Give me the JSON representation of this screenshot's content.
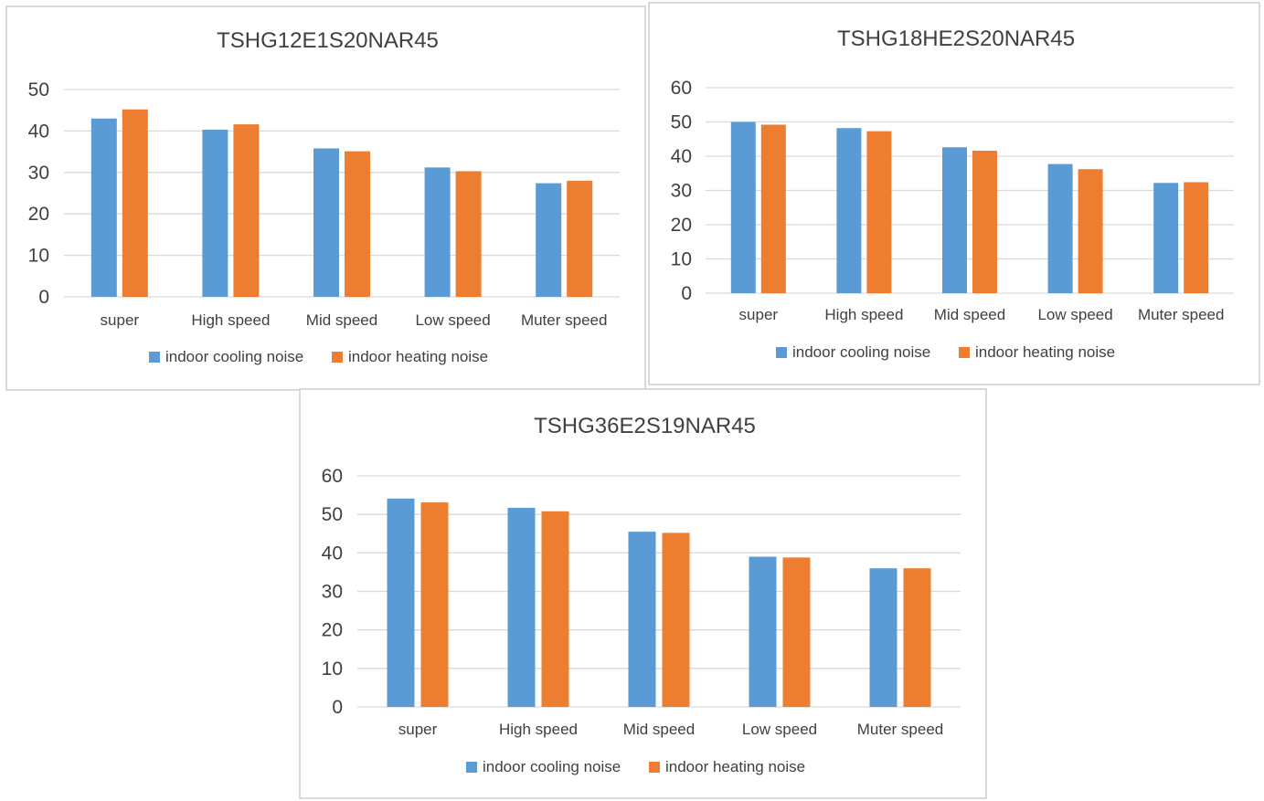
{
  "colors": {
    "cooling": "#5b9bd5",
    "heating": "#ed7d31",
    "grid": "#d9d9d9",
    "text": "#404040"
  },
  "chart_data": [
    {
      "type": "bar",
      "title": "TSHG12E1S20NAR45",
      "categories": [
        "super",
        "High speed",
        "Mid speed",
        "Low speed",
        "Muter speed"
      ],
      "series": [
        {
          "name": "indoor cooling noise",
          "values": [
            43,
            40.3,
            35.8,
            31.2,
            27.4
          ]
        },
        {
          "name": "indoor heating noise",
          "values": [
            45.2,
            41.6,
            35.1,
            30.3,
            28
          ]
        }
      ],
      "ylim": [
        0,
        50
      ],
      "yticks": [
        "0",
        "10",
        "20",
        "30",
        "40",
        "50"
      ],
      "grid": true,
      "legend": "bottom"
    },
    {
      "type": "bar",
      "title": "TSHG18HE2S20NAR45",
      "categories": [
        "super",
        "High speed",
        "Mid speed",
        "Low speed",
        "Muter speed"
      ],
      "series": [
        {
          "name": "indoor cooling noise",
          "values": [
            50,
            48.2,
            42.6,
            37.7,
            32.2
          ]
        },
        {
          "name": "indoor heating noise",
          "values": [
            49.2,
            47.3,
            41.6,
            36.2,
            32.4
          ]
        }
      ],
      "ylim": [
        0,
        60
      ],
      "yticks": [
        "0",
        "10",
        "20",
        "30",
        "40",
        "50",
        "60"
      ],
      "grid": true,
      "legend": "bottom"
    },
    {
      "type": "bar",
      "title": "TSHG36E2S19NAR45",
      "categories": [
        "super",
        "High speed",
        "Mid speed",
        "Low speed",
        "Muter speed"
      ],
      "series": [
        {
          "name": "indoor cooling noise",
          "values": [
            54.1,
            51.7,
            45.5,
            39,
            36
          ]
        },
        {
          "name": "indoor heating noise",
          "values": [
            53.1,
            50.8,
            45.2,
            38.8,
            36
          ]
        }
      ],
      "ylim": [
        0,
        60
      ],
      "yticks": [
        "0",
        "10",
        "20",
        "30",
        "40",
        "50",
        "60"
      ],
      "grid": true,
      "legend": "bottom"
    }
  ]
}
